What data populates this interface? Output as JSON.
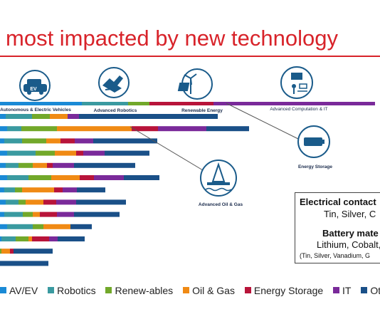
{
  "title": "most impacted by new technology",
  "colors": {
    "av_ev": "#1a8ad6",
    "robotics": "#3a9aa0",
    "renewables": "#72a82a",
    "oil_gas": "#f08a14",
    "energy_storage": "#b8143a",
    "it": "#7a2a9a",
    "other": "#1a5088",
    "title_red": "#d8232a"
  },
  "icons": [
    {
      "name": "ev-car-icon",
      "label": "Autonomous & Electric Vehicles",
      "badge": "EV"
    },
    {
      "name": "robot-hand-icon",
      "label": "Advanced Robotics"
    },
    {
      "name": "wind-solar-icon",
      "label": "Renewable Energy"
    },
    {
      "name": "computation-icon",
      "label": "Advanced Computation & IT"
    },
    {
      "name": "battery-icon",
      "label": "Energy Storage"
    },
    {
      "name": "oil-rig-icon",
      "label": "Advanced Oil & Gas"
    }
  ],
  "callout": {
    "line1": "Electrical contact",
    "line2": "Tin, Silver, C",
    "line3": "Battery mate",
    "line4": "Lithium, Cobalt,",
    "line5": "(Tin, Silver, Vanadium, G"
  },
  "chart_data": {
    "type": "bar",
    "stacked": true,
    "orientation": "horizontal",
    "axis_labels_visible": false,
    "categories_visible": false,
    "legend_position": "bottom",
    "series": [
      {
        "name": "AV/EV",
        "values": [
          115,
          8,
          10,
          6,
          10,
          8,
          10,
          6,
          8,
          6,
          10,
          2,
          0,
          0
        ]
      },
      {
        "name": "Robotics",
        "values": [
          65,
          37,
          20,
          25,
          40,
          18,
          30,
          15,
          18,
          26,
          36,
          20,
          0,
          0
        ]
      },
      {
        "name": "Renew-ables",
        "values": [
          30,
          25,
          50,
          34,
          27,
          20,
          32,
          10,
          10,
          14,
          15,
          18,
          2,
          0
        ]
      },
      {
        "name": "Oil & Gas",
        "values": [
          0,
          25,
          105,
          20,
          30,
          20,
          40,
          45,
          25,
          10,
          38,
          5,
          12,
          0
        ]
      },
      {
        "name": "Energy Storage",
        "values": [
          90,
          0,
          37,
          20,
          10,
          8,
          20,
          12,
          18,
          24,
          0,
          24,
          5,
          0
        ]
      },
      {
        "name": "IT",
        "values": [
          227,
          16,
          68,
          26,
          30,
          30,
          42,
          20,
          28,
          24,
          0,
          12,
          0,
          0
        ]
      },
      {
        "name": "Other",
        "values": [
          0,
          195,
          60,
          90,
          63,
          86,
          50,
          40,
          70,
          64,
          30,
          38,
          55,
          68
        ]
      }
    ]
  },
  "legend": [
    "AV/EV",
    "Robotics",
    "Renew-ables",
    "Oil & Gas",
    "Energy Storage",
    "IT",
    "Other"
  ]
}
